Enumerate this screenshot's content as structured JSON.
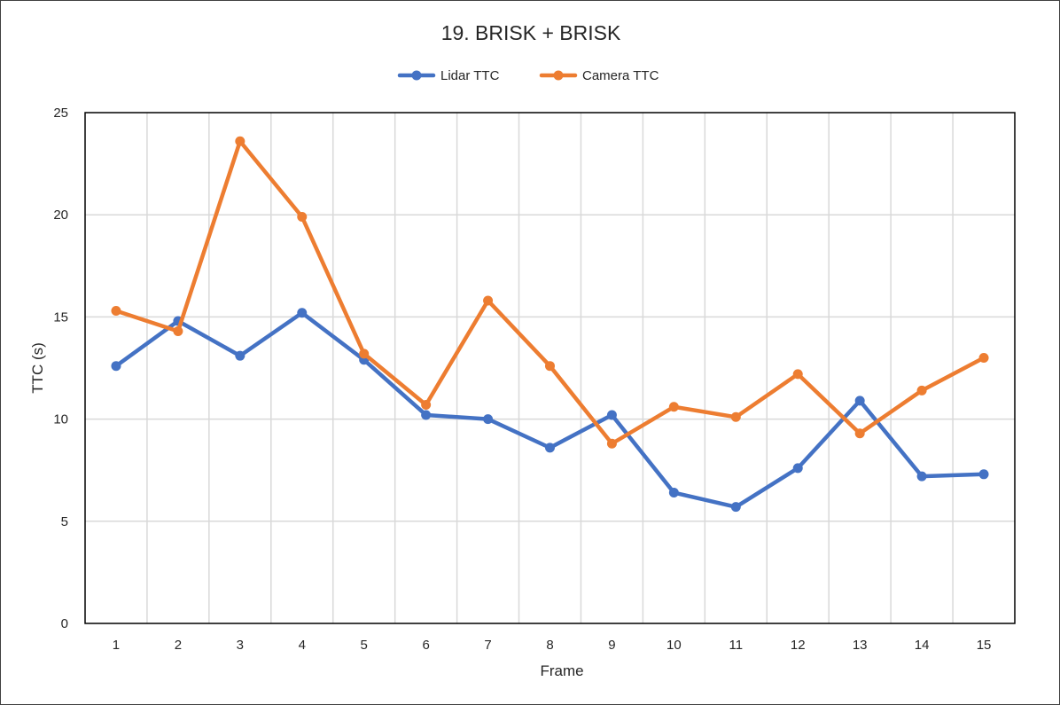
{
  "chart_data": {
    "type": "line",
    "title": "19. BRISK + BRISK",
    "xlabel": "Frame",
    "ylabel": "TTC (s)",
    "x": [
      1,
      2,
      3,
      4,
      5,
      6,
      7,
      8,
      9,
      10,
      11,
      12,
      13,
      14,
      15
    ],
    "ylim": [
      0,
      25
    ],
    "yticks": [
      0,
      5,
      10,
      15,
      20,
      25
    ],
    "grid": true,
    "legend_position": "top",
    "series": [
      {
        "name": "Lidar TTC",
        "color": "#4472c4",
        "values": [
          12.6,
          14.8,
          13.1,
          15.2,
          12.9,
          10.2,
          10.0,
          8.6,
          10.2,
          6.4,
          5.7,
          7.6,
          10.9,
          7.2,
          7.3
        ]
      },
      {
        "name": "Camera TTC",
        "color": "#ed7d31",
        "values": [
          15.3,
          14.3,
          23.6,
          19.9,
          13.2,
          10.7,
          15.8,
          12.6,
          8.8,
          10.6,
          10.1,
          12.2,
          9.3,
          11.4,
          13.0
        ]
      }
    ]
  }
}
